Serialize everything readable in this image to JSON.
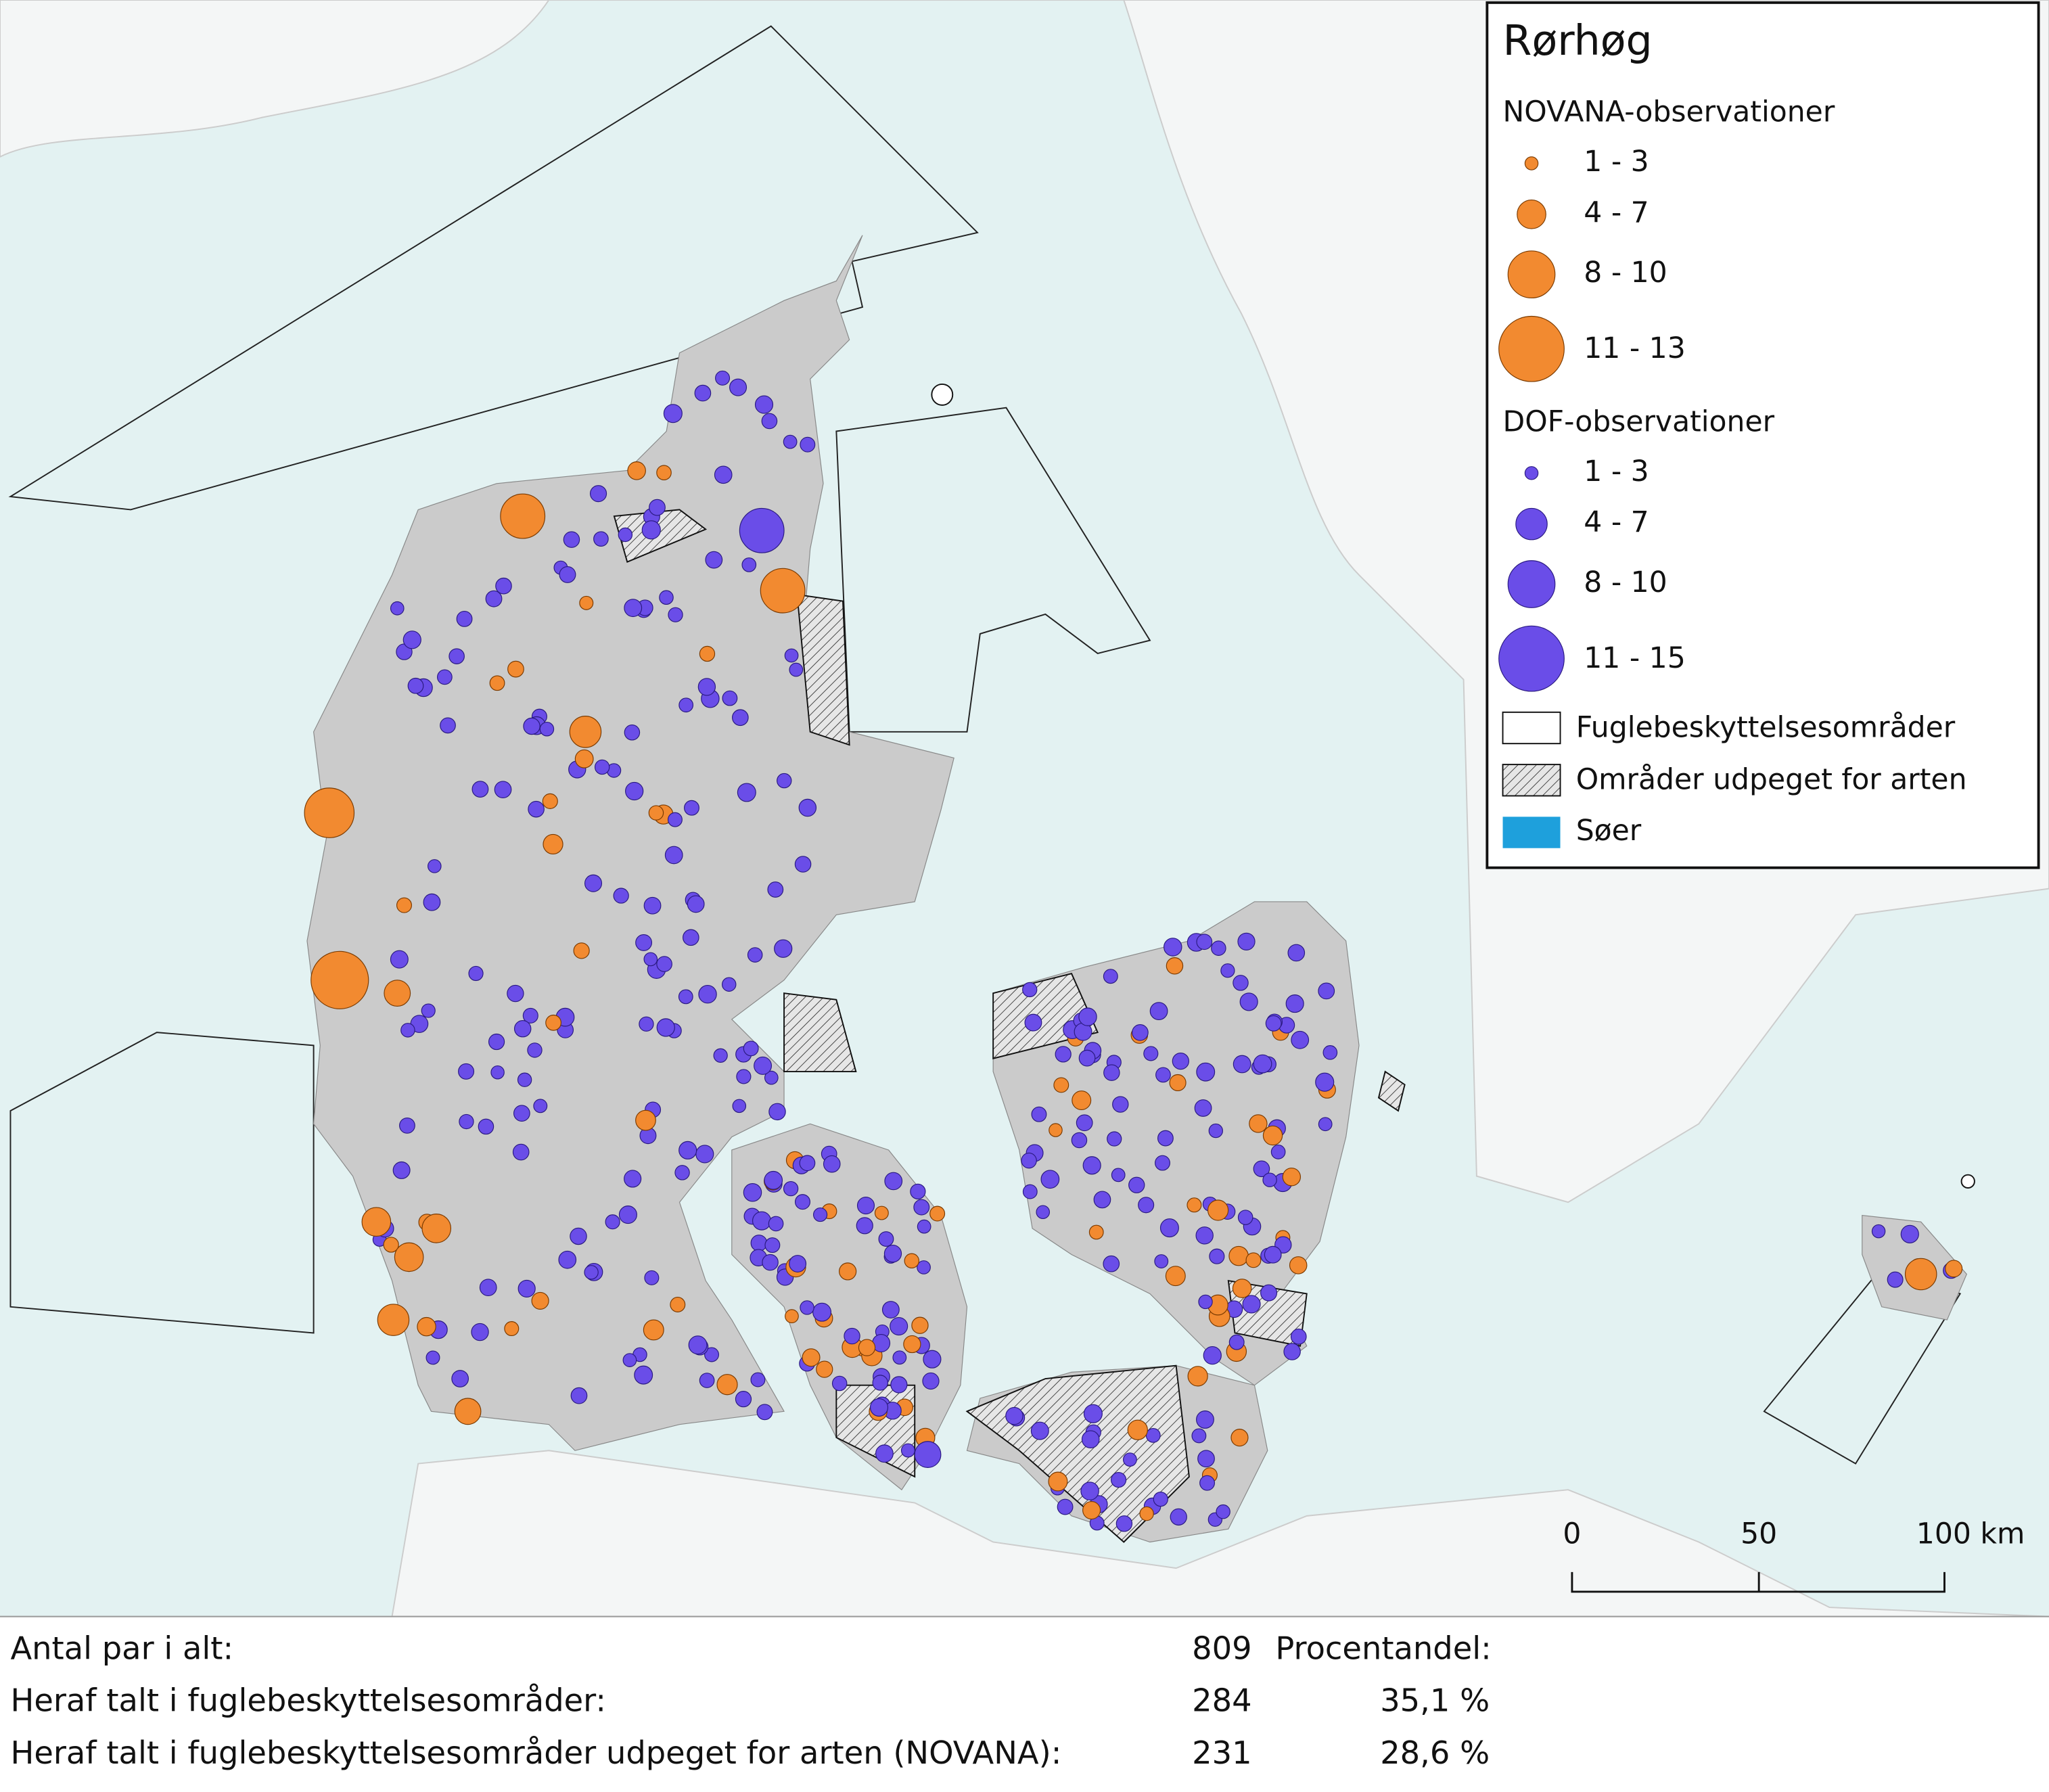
{
  "legend": {
    "title": "Rørhøg",
    "sections": [
      {
        "heading": "NOVANA-observationer",
        "items": [
          "1 - 3",
          "4 - 7",
          "8 - 10",
          "11 - 13"
        ]
      },
      {
        "heading": "DOF-observationer",
        "items": [
          "1 - 3",
          "4 - 7",
          "8 - 10",
          "11 - 15"
        ]
      }
    ],
    "areas": [
      "Fuglebeskyttelsesområder",
      "Områder udpeget for arten",
      "Søer"
    ]
  },
  "scale_bar": [
    "0",
    "50",
    "100 km"
  ],
  "stats": {
    "rows": [
      [
        "Antal par i alt:",
        "809",
        "Procentandel:"
      ],
      [
        "Heraf talt i fuglebeskyttelsesområder:",
        "284",
        "35,1 %"
      ],
      [
        "Heraf talt i fuglebeskyttelsesområder udpeget for arten (NOVANA):",
        "231",
        "28,6 %"
      ]
    ]
  }
}
